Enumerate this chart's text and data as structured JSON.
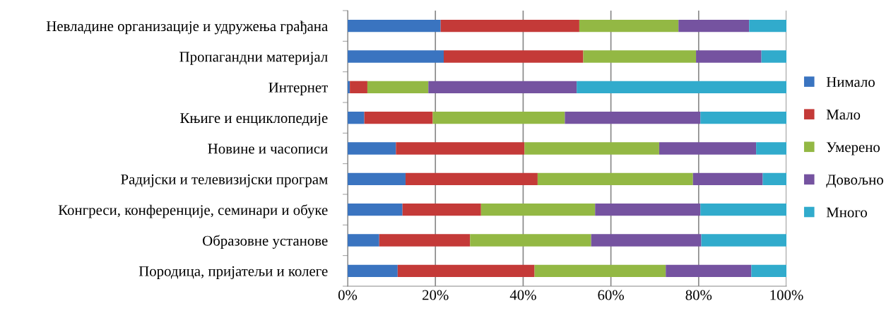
{
  "chart_data": {
    "type": "bar",
    "orientation": "horizontal",
    "stacked": true,
    "categories": [
      "Невладине организације и удружења грађана",
      "Пропагандни материјал",
      "Интернет",
      "Књиге и енциклопедије",
      "Новине и часописи",
      "Радијски и телевизијски програм",
      "Конгреси, конференције, семинари и обуке",
      "Образовне установе",
      "Породица, пријатељи и колеге"
    ],
    "series": [
      {
        "name": "Нимало",
        "color": "#3a74c0",
        "values": [
          21.2,
          21.9,
          0.5,
          3.8,
          11.0,
          13.2,
          12.5,
          7.2,
          11.4
        ]
      },
      {
        "name": "Мало",
        "color": "#c43a38",
        "values": [
          31.6,
          31.8,
          4.0,
          15.6,
          29.3,
          30.1,
          17.9,
          20.7,
          31.2
        ]
      },
      {
        "name": "Умерено",
        "color": "#93b844",
        "values": [
          22.6,
          25.7,
          13.9,
          30.1,
          30.7,
          35.4,
          26.0,
          27.6,
          29.9
        ]
      },
      {
        "name": "Довољно",
        "color": "#7553a0",
        "values": [
          16.1,
          14.9,
          33.8,
          30.9,
          22.1,
          15.9,
          24.0,
          25.1,
          19.5
        ]
      },
      {
        "name": "Много",
        "color": "#31abcc",
        "values": [
          8.5,
          5.7,
          47.8,
          19.6,
          6.9,
          5.4,
          19.6,
          19.4,
          8.0
        ]
      }
    ],
    "xlim": [
      0,
      100
    ],
    "xticks": [
      {
        "value": 0,
        "label": "0%"
      },
      {
        "value": 20,
        "label": "20%"
      },
      {
        "value": 40,
        "label": "40%"
      },
      {
        "value": 60,
        "label": "60%"
      },
      {
        "value": 80,
        "label": "80%"
      },
      {
        "value": 100,
        "label": "100%"
      }
    ],
    "grid": "x",
    "legend": "right"
  }
}
